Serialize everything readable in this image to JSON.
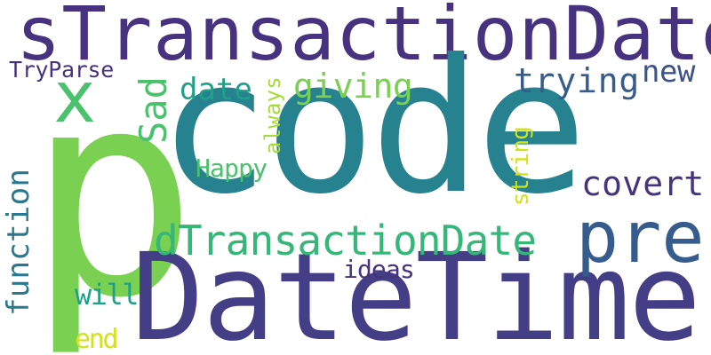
{
  "colors": {
    "background": "#ffffff",
    "dark_purple": "#46327e",
    "indigo": "#3b528b",
    "blue": "#365c8d",
    "teal": "#21908d",
    "green_teal": "#1fa187",
    "green": "#35b779",
    "light_green": "#4ac16d",
    "lime": "#7ad151",
    "yellow_green": "#a5db36",
    "yellow": "#d2e21b"
  },
  "words": {
    "stransactiondate": "sTransactionDate",
    "code": "code",
    "p": "p",
    "datetime": "DateTime",
    "x": "x",
    "pre": "pre",
    "dtransactiondate": "dTransactionDate",
    "sad": "Sad",
    "tryparse": "TryParse",
    "date": "date",
    "giving": "giving",
    "trying": "trying",
    "new": "new",
    "always": "always",
    "happy": "Happy",
    "covert": "covert",
    "string": "string",
    "function": "function",
    "ideas": "ideas",
    "will": "will",
    "end": "end"
  }
}
